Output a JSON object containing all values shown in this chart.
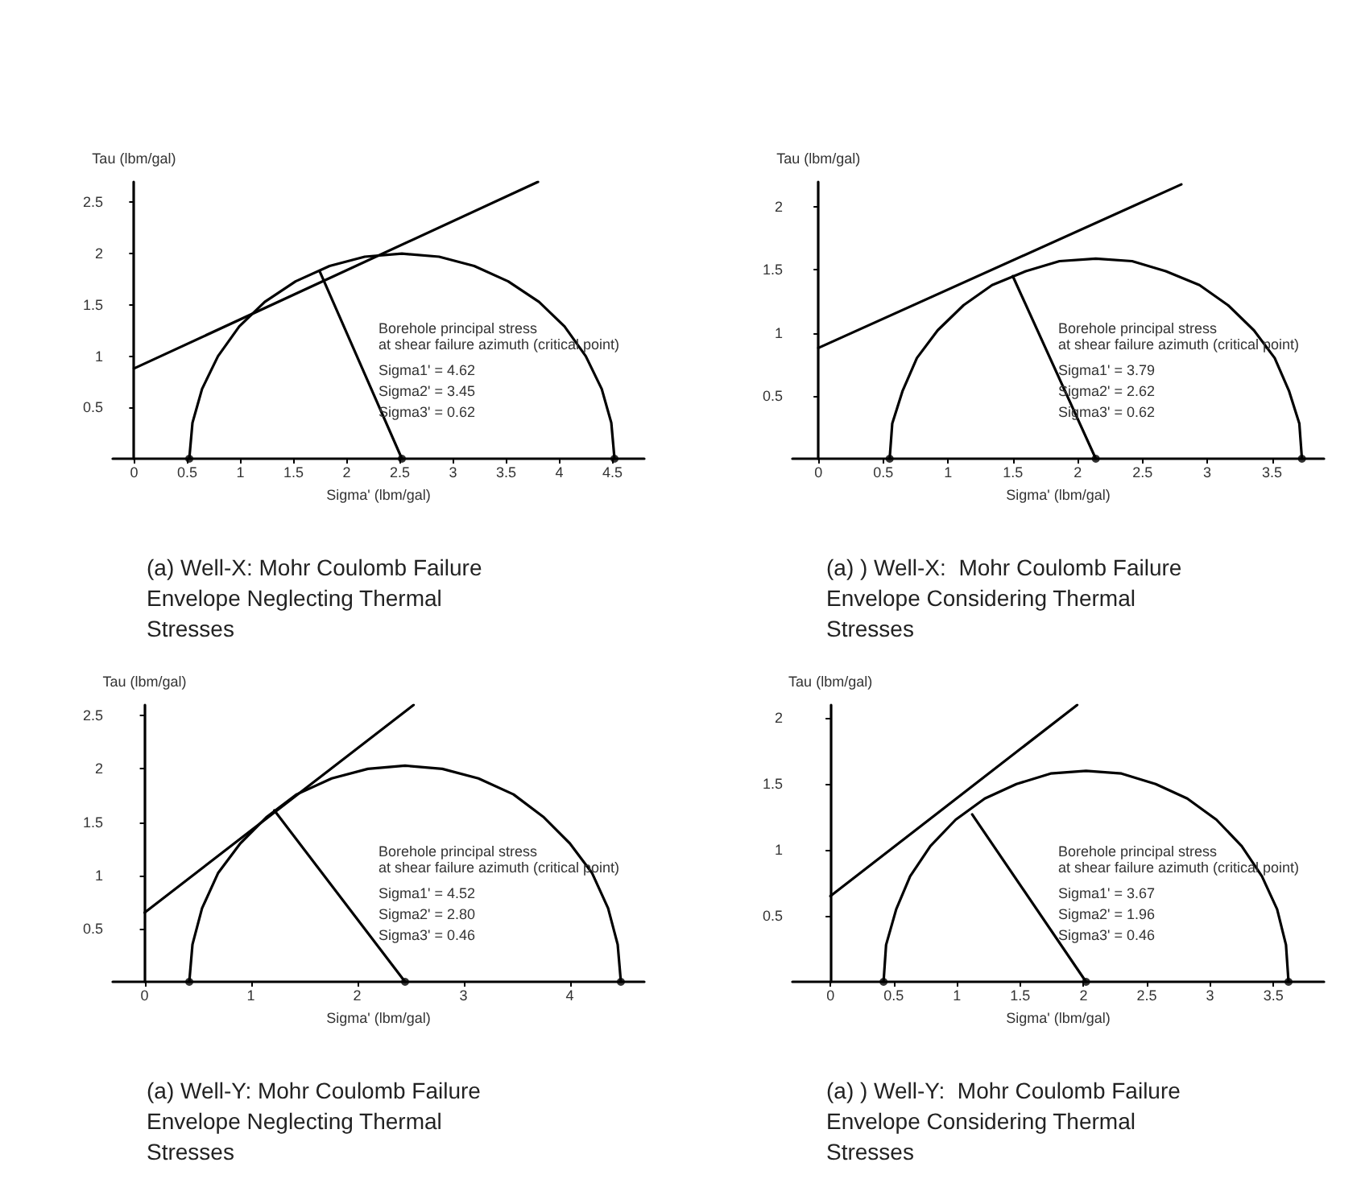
{
  "chart_data": [
    {
      "type": "line",
      "title": "(a) Well-X: Mohr Coulomb Failure Envelope Neglecting Thermal Stresses",
      "xlabel": "Sigma' (lbm/gal)",
      "ylabel": "Tau (lbm/gal)",
      "annotations": [
        "Borehole principal stress\nat shear failure azimuth (critical point)",
        "Sigma1' = 4.62",
        "Sigma2' = 3.45",
        "Sigma3' = 0.62"
      ],
      "xlim": [
        -0.2,
        4.8
      ],
      "xticks": [
        0,
        0.5,
        1,
        1.5,
        2,
        2.5,
        3,
        3.5,
        4,
        4.5
      ],
      "ylim": [
        0,
        2.7
      ],
      "yticks": [
        0.5,
        1,
        1.5,
        2,
        2.5
      ],
      "marker": "none",
      "line_style": "solid",
      "series": [
        {
          "type": "line",
          "color": "#000000",
          "x": [
            0.52,
            0.55,
            0.64,
            0.79,
            0.99,
            1.23,
            1.52,
            1.84,
            2.17,
            2.52,
            2.87,
            3.2,
            3.52,
            3.81,
            4.05,
            4.25,
            4.4,
            4.49,
            4.52
          ],
          "values": [
            0,
            0.35,
            0.68,
            1.0,
            1.29,
            1.53,
            1.73,
            1.88,
            1.97,
            2.0,
            1.97,
            1.88,
            1.73,
            1.53,
            1.29,
            1.0,
            0.68,
            0.35,
            0
          ]
        },
        {
          "type": "line",
          "color": "#000000",
          "x": [
            0,
            3.8
          ],
          "values": [
            0.88,
            2.7
          ]
        },
        {
          "type": "line",
          "color": "#000000",
          "x": [
            2.52,
            1.75
          ],
          "values": [
            0,
            1.82
          ]
        },
        {
          "type": "scatter",
          "color": "#000000",
          "marker": "circle",
          "x": [
            0.52,
            2.52,
            4.52
          ],
          "values": [
            0,
            0,
            0
          ]
        }
      ]
    },
    {
      "type": "line",
      "title": "(a) ) Well-X:  Mohr Coulomb Failure Envelope Considering Thermal Stresses",
      "xlabel": "Sigma' (lbm/gal)",
      "ylabel": "Tau (lbm/gal)",
      "annotations": [
        "Borehole principal stress\nat shear failure azimuth (critical point)",
        "Sigma1' = 3.79",
        "Sigma2' = 2.62",
        "Sigma3' = 0.62"
      ],
      "xlim": [
        -0.2,
        3.9
      ],
      "xticks": [
        0,
        0.5,
        1,
        1.5,
        2,
        2.5,
        3,
        3.5
      ],
      "ylim": [
        0,
        2.2
      ],
      "yticks": [
        0.5,
        1,
        1.5,
        2
      ],
      "marker": "none",
      "line_style": "solid",
      "series": [
        {
          "type": "line",
          "color": "#000000",
          "x": [
            0.55,
            0.57,
            0.65,
            0.76,
            0.92,
            1.12,
            1.34,
            1.6,
            1.86,
            2.14,
            2.42,
            2.68,
            2.94,
            3.16,
            3.36,
            3.52,
            3.63,
            3.71,
            3.73
          ],
          "values": [
            0,
            0.28,
            0.54,
            0.8,
            1.02,
            1.22,
            1.38,
            1.49,
            1.57,
            1.59,
            1.57,
            1.49,
            1.38,
            1.22,
            1.02,
            0.8,
            0.54,
            0.28,
            0
          ]
        },
        {
          "type": "line",
          "color": "#000000",
          "x": [
            0,
            2.8
          ],
          "values": [
            0.88,
            2.18
          ]
        },
        {
          "type": "line",
          "color": "#000000",
          "x": [
            2.14,
            1.5
          ],
          "values": [
            0,
            1.45
          ]
        },
        {
          "type": "scatter",
          "color": "#000000",
          "marker": "circle",
          "x": [
            0.55,
            2.14,
            3.73
          ],
          "values": [
            0,
            0,
            0
          ]
        }
      ]
    },
    {
      "type": "line",
      "title": "(a) Well-Y: Mohr Coulomb Failure Envelope Neglecting Thermal Stresses",
      "xlabel": "Sigma' (lbm/gal)",
      "ylabel": "Tau (lbm/gal)",
      "annotations": [
        "Borehole principal stress\nat shear failure azimuth (critical point)",
        "Sigma1' = 4.52",
        "Sigma2' = 2.80",
        "Sigma3' = 0.46"
      ],
      "xlim": [
        -0.3,
        4.7
      ],
      "xticks": [
        0,
        1,
        2,
        3,
        4
      ],
      "ylim": [
        0,
        2.6
      ],
      "yticks": [
        0.5,
        1,
        1.5,
        2,
        2.5
      ],
      "marker": "none",
      "line_style": "solid",
      "series": [
        {
          "type": "line",
          "color": "#000000",
          "x": [
            0.42,
            0.45,
            0.54,
            0.69,
            0.9,
            1.15,
            1.43,
            1.76,
            2.1,
            2.45,
            2.8,
            3.14,
            3.47,
            3.75,
            4.0,
            4.21,
            4.36,
            4.45,
            4.48
          ],
          "values": [
            0,
            0.35,
            0.69,
            1.02,
            1.3,
            1.55,
            1.76,
            1.91,
            2.0,
            2.03,
            2.0,
            1.91,
            1.76,
            1.55,
            1.3,
            1.02,
            0.69,
            0.35,
            0
          ]
        },
        {
          "type": "line",
          "color": "#000000",
          "x": [
            0,
            2.53
          ],
          "values": [
            0.65,
            2.6
          ]
        },
        {
          "type": "line",
          "color": "#000000",
          "x": [
            2.45,
            1.22
          ],
          "values": [
            0,
            1.61
          ]
        },
        {
          "type": "scatter",
          "color": "#000000",
          "marker": "circle",
          "x": [
            0.42,
            2.45,
            4.48
          ],
          "values": [
            0,
            0,
            0
          ]
        }
      ]
    },
    {
      "type": "line",
      "title": "(a) ) Well-Y:  Mohr Coulomb Failure Envelope Considering Thermal Stresses",
      "xlabel": "Sigma' (lbm/gal)",
      "ylabel": "Tau (lbm/gal)",
      "annotations": [
        "Borehole principal stress\nat shear failure azimuth (critical point)",
        "Sigma1' = 3.67",
        "Sigma2' = 1.96",
        "Sigma3' = 0.46"
      ],
      "xlim": [
        -0.3,
        3.9
      ],
      "xticks": [
        0,
        0.5,
        1,
        1.5,
        2,
        2.5,
        3,
        3.5
      ],
      "ylim": [
        0,
        2.1
      ],
      "yticks": [
        0.5,
        1,
        1.5,
        2
      ],
      "marker": "none",
      "line_style": "solid",
      "series": [
        {
          "type": "line",
          "color": "#000000",
          "x": [
            0.42,
            0.44,
            0.52,
            0.63,
            0.79,
            0.99,
            1.22,
            1.47,
            1.74,
            2.02,
            2.3,
            2.57,
            2.82,
            3.05,
            3.25,
            3.41,
            3.53,
            3.6,
            3.62
          ],
          "values": [
            0,
            0.28,
            0.55,
            0.8,
            1.03,
            1.23,
            1.39,
            1.5,
            1.58,
            1.6,
            1.58,
            1.5,
            1.39,
            1.23,
            1.03,
            0.8,
            0.55,
            0.28,
            0
          ]
        },
        {
          "type": "line",
          "color": "#000000",
          "x": [
            0,
            1.95
          ],
          "values": [
            0.65,
            2.1
          ]
        },
        {
          "type": "line",
          "color": "#000000",
          "x": [
            2.02,
            1.12
          ],
          "values": [
            0,
            1.27
          ]
        },
        {
          "type": "scatter",
          "color": "#000000",
          "marker": "circle",
          "x": [
            0.42,
            2.02,
            3.62
          ],
          "values": [
            0,
            0,
            0
          ]
        }
      ]
    }
  ]
}
